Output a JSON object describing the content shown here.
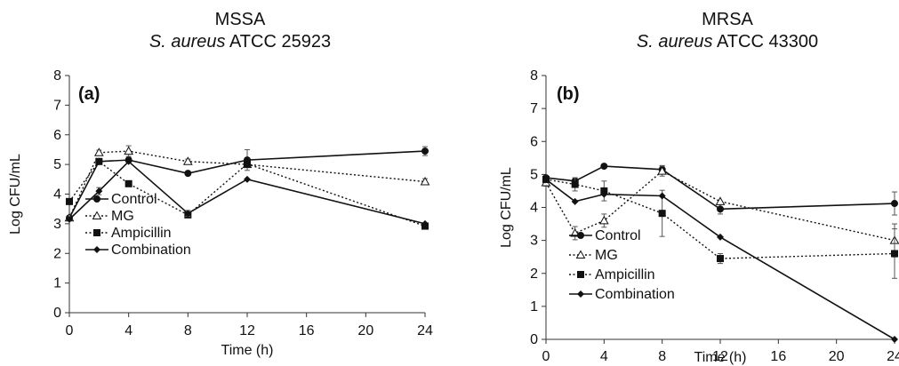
{
  "chart_data": [
    {
      "type": "line",
      "title": "MSSA",
      "subtitle_italic": "S. aureus",
      "subtitle_rest": " ATCC 25923",
      "panel_label": "(a)",
      "xlabel": "Time (h)",
      "ylabel": "Log CFU/mL",
      "xlim": [
        0,
        24
      ],
      "ylim": [
        0,
        8
      ],
      "xticks": [
        0,
        4,
        8,
        12,
        16,
        20,
        24
      ],
      "yticks": [
        0,
        1,
        2,
        3,
        4,
        5,
        6,
        7,
        8
      ],
      "grid": false,
      "legend_position": "bottom-left",
      "x": [
        0,
        2,
        4,
        8,
        12,
        24
      ],
      "series": [
        {
          "name": "Control",
          "style": "solid",
          "marker": "circle",
          "values": [
            3.2,
            5.1,
            5.15,
            4.7,
            5.15,
            5.45
          ],
          "error": [
            0,
            0,
            0,
            0,
            0.35,
            0.15
          ]
        },
        {
          "name": "MG",
          "style": "dotted",
          "marker": "triangle",
          "values": [
            3.2,
            5.4,
            5.45,
            5.1,
            5.0,
            4.42
          ],
          "error": [
            0,
            0.08,
            0.18,
            0.08,
            0,
            0.1
          ]
        },
        {
          "name": "Ampicillin",
          "style": "dotted",
          "marker": "square",
          "values": [
            3.75,
            5.1,
            4.35,
            3.3,
            5.02,
            2.92
          ],
          "error": [
            0,
            0,
            0,
            0,
            0,
            0.05
          ]
        },
        {
          "name": "Combination",
          "style": "solid",
          "marker": "diamond",
          "values": [
            3.15,
            4.1,
            5.1,
            3.35,
            4.5,
            3.0
          ],
          "error": [
            0,
            0.12,
            0,
            0.1,
            0,
            0
          ]
        }
      ]
    },
    {
      "type": "line",
      "title": "MRSA",
      "subtitle_italic": "S. aureus",
      "subtitle_rest": " ATCC 43300",
      "panel_label": "(b)",
      "xlabel": "Time (h)",
      "ylabel": "Log CFU/mL",
      "xlim": [
        0,
        24
      ],
      "ylim": [
        0,
        8
      ],
      "xticks": [
        0,
        4,
        8,
        12,
        16,
        20,
        24
      ],
      "yticks": [
        0,
        1,
        2,
        3,
        4,
        5,
        6,
        7,
        8
      ],
      "grid": false,
      "legend_position": "bottom-left",
      "x": [
        0,
        2,
        4,
        8,
        12,
        24
      ],
      "series": [
        {
          "name": "Control",
          "style": "solid",
          "marker": "circle",
          "values": [
            4.9,
            4.8,
            5.25,
            5.15,
            3.95,
            4.12
          ],
          "error": [
            0,
            0.1,
            0,
            0.12,
            0.15,
            0.35
          ]
        },
        {
          "name": "MG",
          "style": "dotted",
          "marker": "triangle",
          "values": [
            4.75,
            3.22,
            3.6,
            5.1,
            4.18,
            3.0
          ],
          "error": [
            0.1,
            0.2,
            0.2,
            0.15,
            0,
            0.5
          ]
        },
        {
          "name": "Ampicillin",
          "style": "dotted",
          "marker": "square",
          "values": [
            4.85,
            4.7,
            4.5,
            3.82,
            2.45,
            2.6
          ],
          "error": [
            0.1,
            0.2,
            0.3,
            0.7,
            0.15,
            0.75
          ]
        },
        {
          "name": "Combination",
          "style": "solid",
          "marker": "diamond",
          "values": [
            4.85,
            4.18,
            4.4,
            4.35,
            3.1,
            0.0
          ],
          "error": [
            0,
            0,
            0,
            0,
            0,
            0
          ]
        }
      ]
    }
  ]
}
